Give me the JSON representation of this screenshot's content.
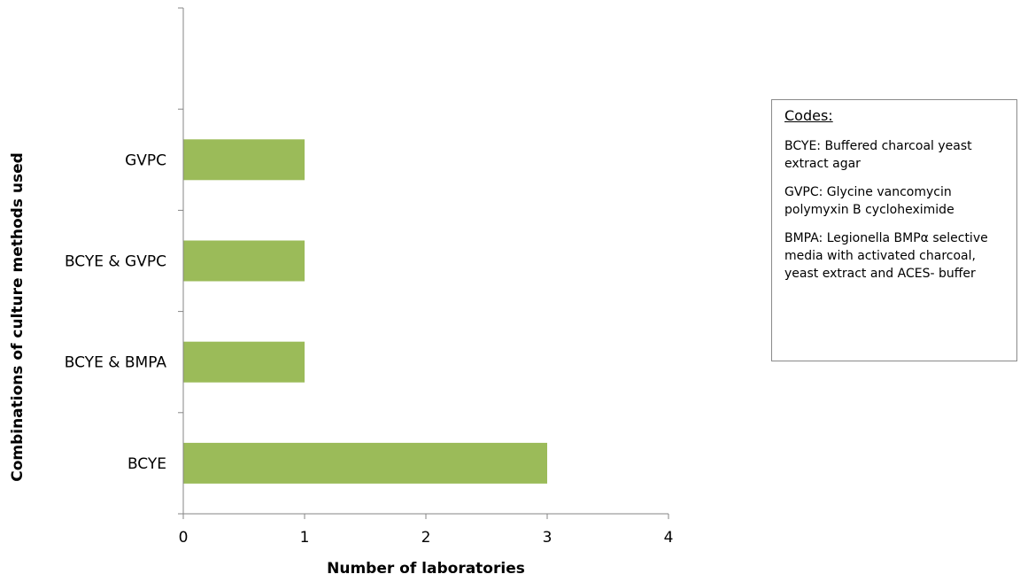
{
  "chart_data": {
    "type": "bar",
    "orientation": "horizontal",
    "categories": [
      "BCYE",
      "BCYE & BMPA",
      "BCYE & GVPC",
      "GVPC",
      ""
    ],
    "values": [
      3,
      1,
      1,
      1,
      null
    ],
    "xlabel": "Number of laboratories",
    "ylabel": "Combinations of culture methods used",
    "xlim": [
      0,
      4
    ],
    "xticks": [
      "0",
      "1",
      "2",
      "3",
      "4"
    ],
    "grid": false,
    "bar_color": "#9bbb59"
  },
  "codes": {
    "title": "Codes:",
    "entries": [
      "BCYE:  Buffered charcoal yeast extract agar",
      "GVPC: Glycine vancomycin polymyxin B cycloheximide",
      "BMPA: Legionella BMPα selective media with activated charcoal, yeast extract and ACES- buffer"
    ]
  }
}
